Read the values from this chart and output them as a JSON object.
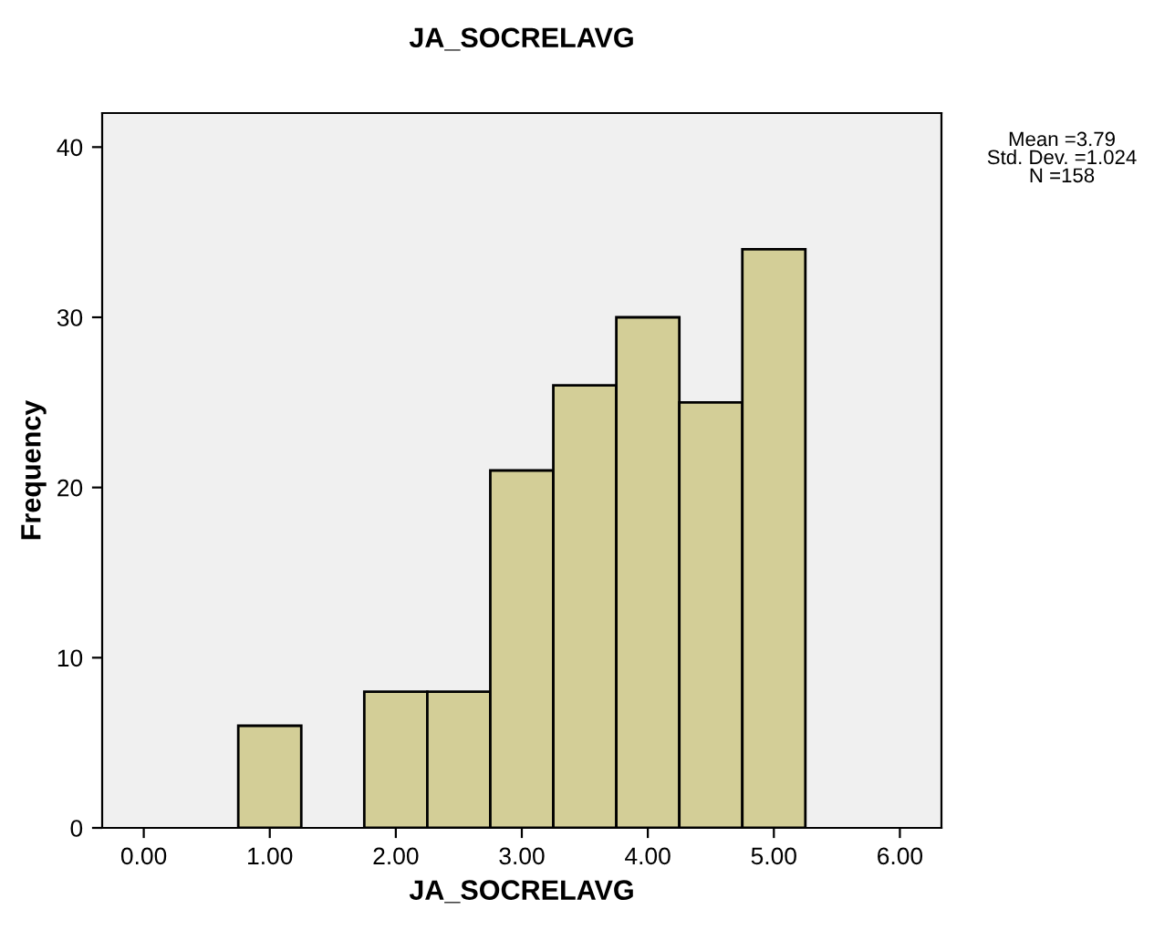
{
  "chart_data": {
    "type": "histogram",
    "title": "JA_SOCRELAVG",
    "xlabel": "JA_SOCRELAVG",
    "ylabel": "Frequency",
    "bins": [
      0.75,
      1.25,
      1.75,
      2.25,
      2.75,
      3.25,
      3.75,
      4.25,
      4.75,
      5.25
    ],
    "values": [
      6,
      0,
      8,
      8,
      21,
      26,
      30,
      25,
      34
    ],
    "color": "#d3ce97",
    "xlim": [
      -0.33,
      6.33
    ],
    "xticks": [
      {
        "value": 0,
        "label": "0.00"
      },
      {
        "value": 1,
        "label": "1.00"
      },
      {
        "value": 2,
        "label": "2.00"
      },
      {
        "value": 3,
        "label": "3.00"
      },
      {
        "value": 4,
        "label": "4.00"
      },
      {
        "value": 5,
        "label": "5.00"
      },
      {
        "value": 6,
        "label": "6.00"
      }
    ],
    "ylim": [
      0,
      42
    ],
    "yticks": [
      0,
      10,
      20,
      30,
      40
    ],
    "grid": false,
    "legend": false,
    "annotations": [
      "Mean =3.79",
      "Std. Dev. =1.024",
      "N =158"
    ]
  }
}
